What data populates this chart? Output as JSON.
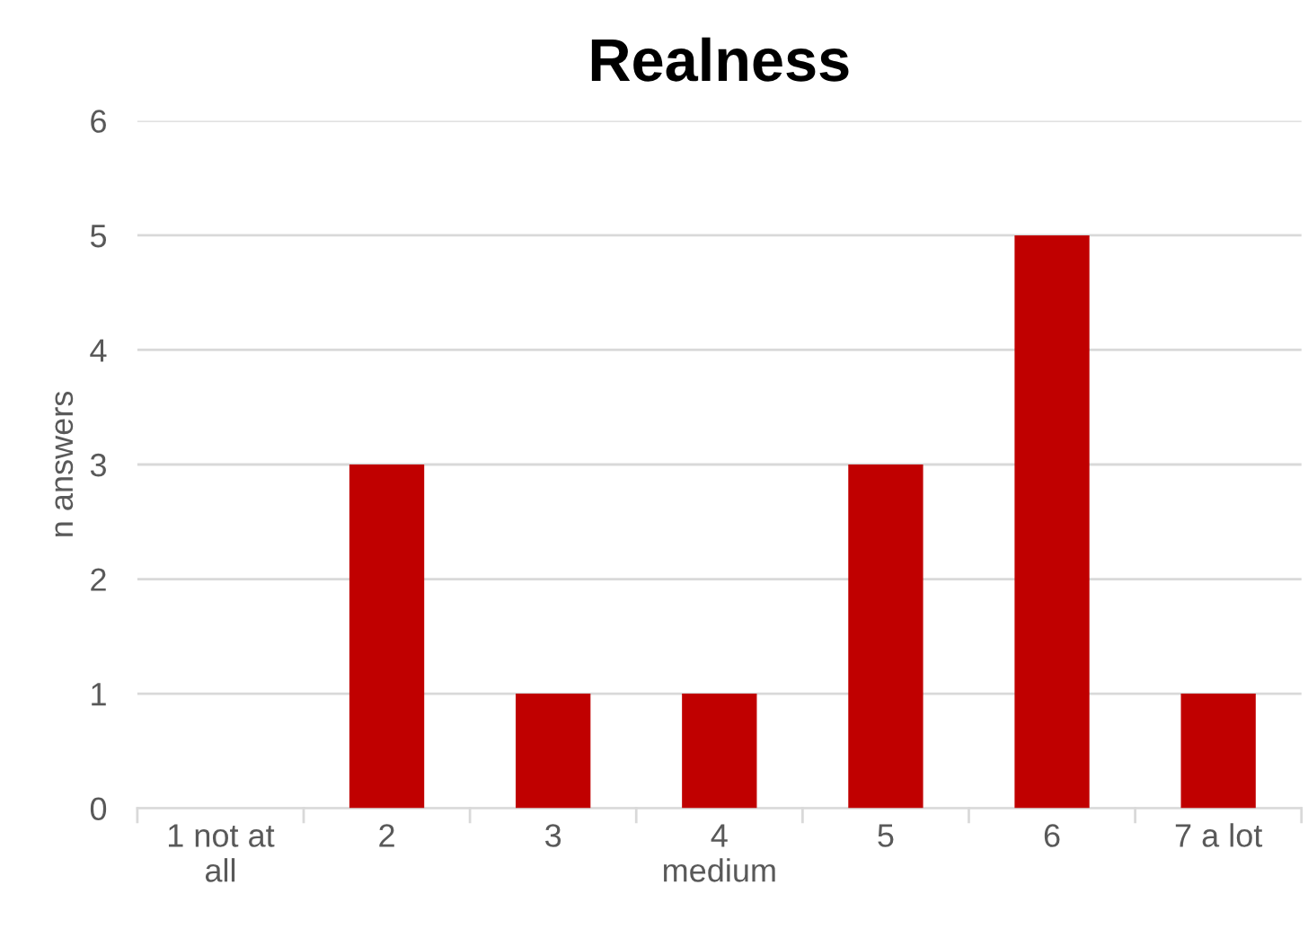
{
  "chart_data": {
    "type": "bar",
    "title": "Realness",
    "ylabel": "n answers",
    "categories": [
      "1 not at\nall",
      "2",
      "3",
      "4\nmedium",
      "5",
      "6",
      "7 a lot"
    ],
    "values": [
      0,
      3,
      1,
      1,
      3,
      5,
      1
    ],
    "color": "#c00000",
    "ylim": [
      0,
      6
    ],
    "yticks": [
      0,
      1,
      2,
      3,
      4,
      5,
      6
    ],
    "grid": "y",
    "legend": false
  }
}
